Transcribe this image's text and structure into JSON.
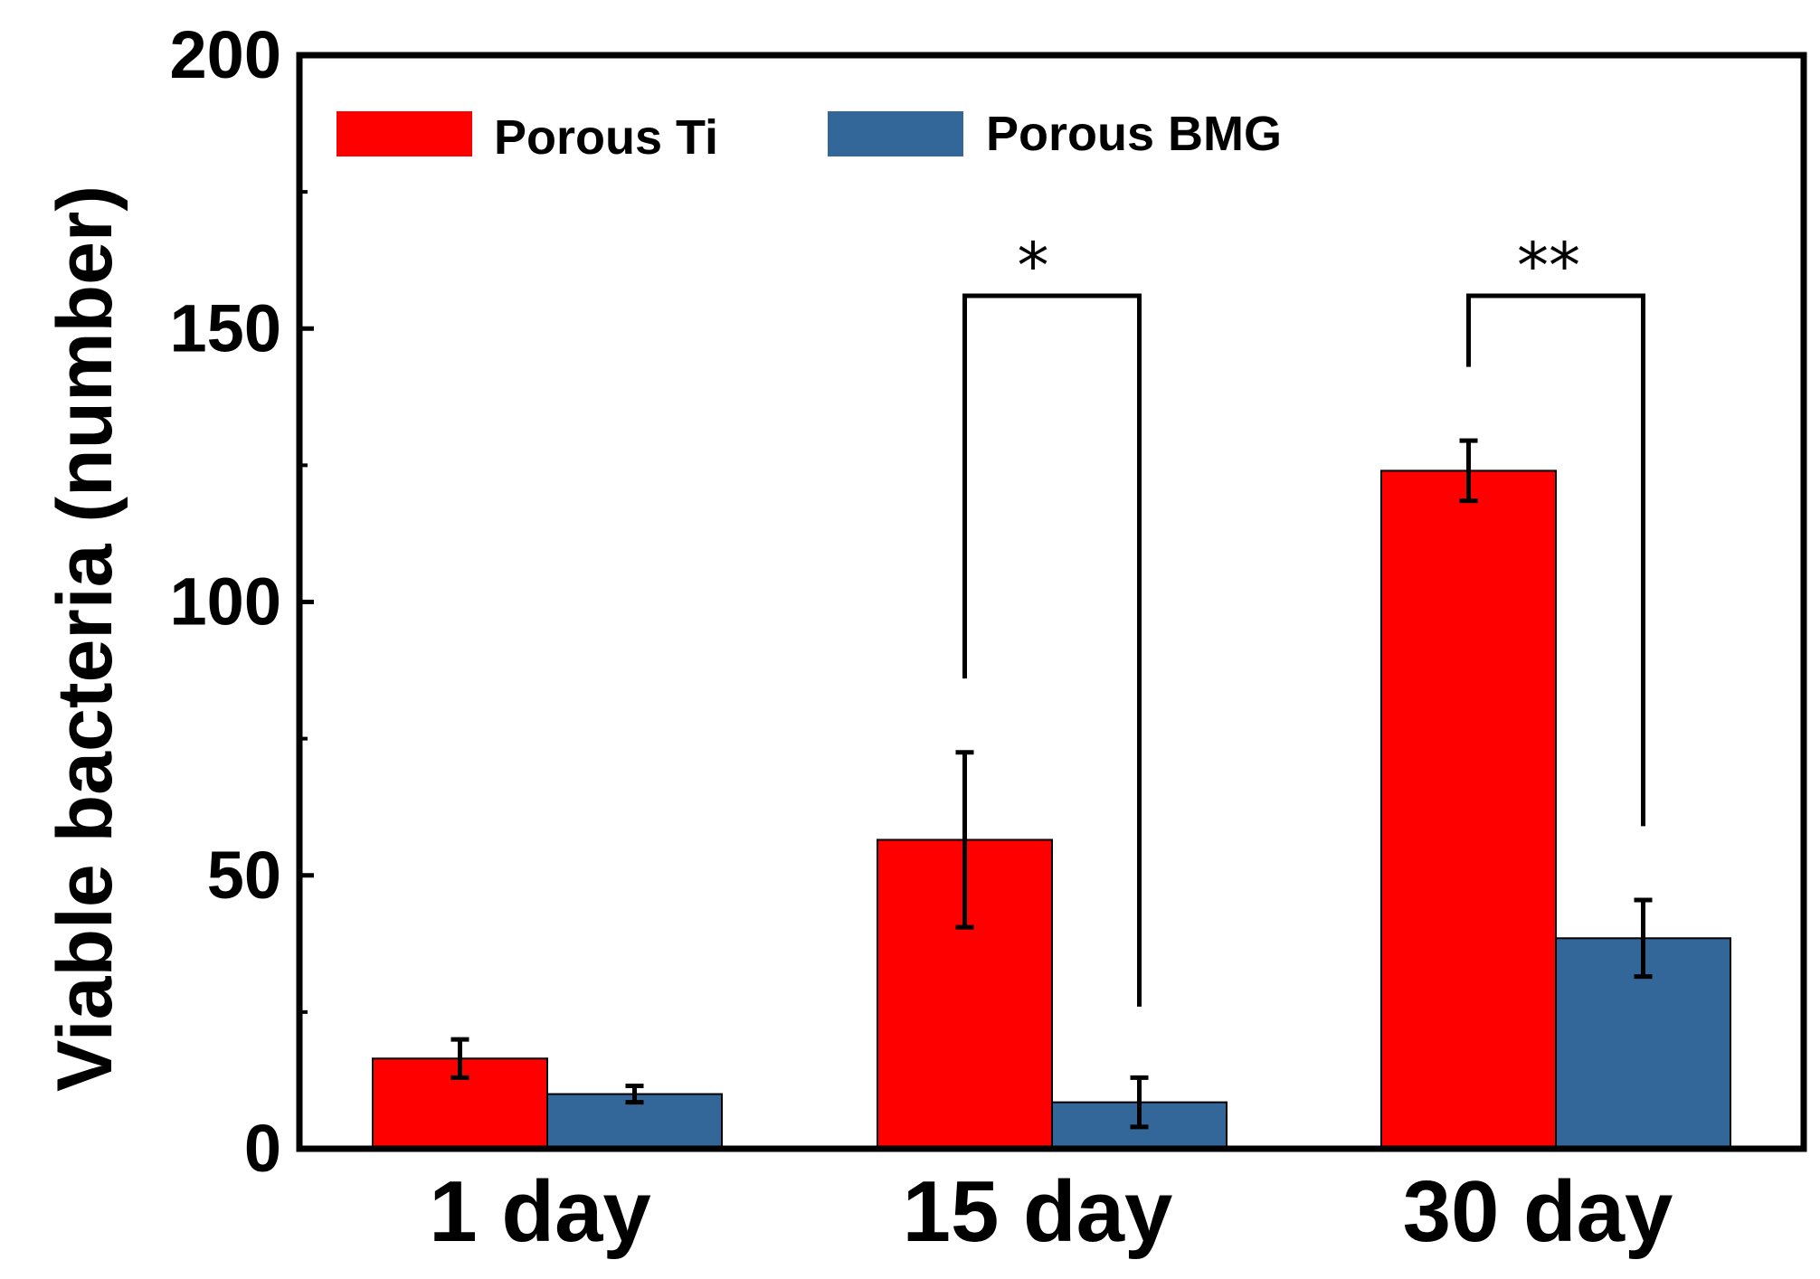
{
  "chart_data": {
    "type": "bar",
    "title": "",
    "xlabel": "",
    "ylabel": "Viable bacteria (number)",
    "ylim": [
      0,
      200
    ],
    "yticks": [
      0,
      50,
      100,
      150,
      200
    ],
    "grid": false,
    "legend_position": "top-left",
    "categories": [
      "1 day",
      "15 day",
      "30 day"
    ],
    "series": [
      {
        "name": "Porous Ti",
        "color": "#ff0000",
        "values": [
          16.5,
          56.5,
          124
        ],
        "errors": [
          3.5,
          16,
          5.5
        ]
      },
      {
        "name": "Porous BMG",
        "color": "#336699",
        "values": [
          10,
          8.5,
          38.5
        ],
        "errors": [
          1.5,
          4.5,
          7
        ]
      }
    ],
    "annotations": [
      {
        "category_index": 1,
        "label": "*",
        "bracket_top": 156,
        "left_bottom": 86,
        "right_bottom": 26
      },
      {
        "category_index": 2,
        "label": "**",
        "bracket_top": 156,
        "left_bottom": 143,
        "right_bottom": 59
      }
    ]
  }
}
